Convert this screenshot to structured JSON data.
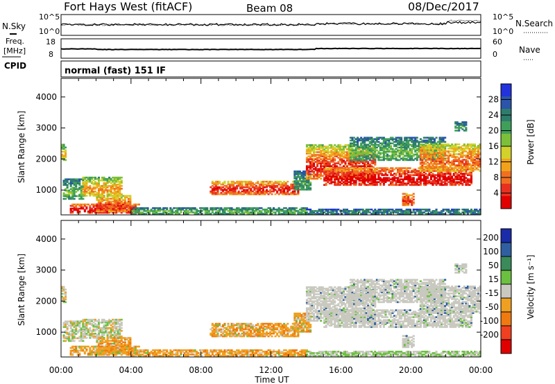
{
  "header": {
    "title": "Fort Hays West (fitACF)",
    "beam": "Beam 08",
    "date": "08/Dec/2017"
  },
  "mode_label": "normal (fast) 151 IF",
  "left_labels": {
    "nsky": "N.Sky",
    "freq_line1": "Freq.",
    "freq_line2": "[MHz]",
    "cpid": "CPID"
  },
  "right_labels": {
    "nsearch": "N.Search",
    "nave": "Nave"
  },
  "tick_labels": {
    "nsky_top": "10^5",
    "nsky_bottom": "10^0",
    "freq_top": "18",
    "freq_bottom": "8",
    "nsearch_top": "10^5",
    "nsearch_bottom": "10^0",
    "nave_top": "60",
    "nave_bottom": "0"
  },
  "chart_data": [
    {
      "type": "heatmap",
      "name": "power",
      "ylabel": "Slant Range [km]",
      "yticks": [
        1000,
        2000,
        3000,
        4000
      ],
      "ylim": [
        200,
        4600
      ],
      "xlim": [
        0,
        24
      ],
      "colorbar": {
        "label": "Power [dB]",
        "ticks": [
          "4",
          "8",
          "12",
          "16",
          "20",
          "24",
          "28"
        ],
        "colors": [
          "#2233dd",
          "#2a55aa",
          "#2e7d6c",
          "#3f9f5a",
          "#7cc03a",
          "#d2d22a",
          "#f2a21a",
          "#f07020",
          "#e83020",
          "#e00000"
        ]
      }
    },
    {
      "type": "heatmap",
      "name": "velocity",
      "ylabel": "Slant Range [km]",
      "yticks": [
        1000,
        2000,
        3000,
        4000
      ],
      "ylim": [
        200,
        4600
      ],
      "xlim": [
        0,
        24
      ],
      "xlabel": "Time UT",
      "xticks": [
        "00:00",
        "04:00",
        "08:00",
        "12:00",
        "16:00",
        "20:00",
        "00:00"
      ],
      "colorbar": {
        "label": "Velocity [m s⁻¹]",
        "ticks": [
          "200",
          "100",
          "50",
          "15",
          "-15",
          "-50",
          "-100",
          "-200"
        ],
        "colors": [
          "#1a2ca8",
          "#2f5fa0",
          "#3a8a5a",
          "#6cc040",
          "#c9c9c0",
          "#f0a020",
          "#f07a10",
          "#f04020",
          "#e00000"
        ]
      }
    }
  ]
}
